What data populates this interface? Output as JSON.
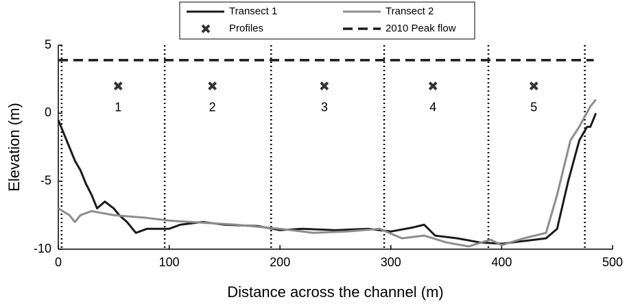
{
  "chart_data": {
    "type": "line",
    "x_label": "Distance across the channel (m)",
    "y_label": "Elevation (m)",
    "xlim": [
      0,
      500
    ],
    "ylim": [
      -10,
      5
    ],
    "xticks": [
      0,
      100,
      200,
      300,
      400,
      500
    ],
    "yticks": [
      -10,
      -5,
      0,
      5
    ],
    "vlines": [
      3,
      96,
      192,
      294,
      388,
      475
    ],
    "series": [
      {
        "name": "Transect 1",
        "color": "#1a1a1a",
        "style": "solid",
        "x": [
          0,
          5,
          10,
          15,
          20,
          25,
          30,
          35,
          42,
          50,
          55,
          62,
          70,
          80,
          100,
          110,
          130,
          150,
          180,
          200,
          220,
          250,
          280,
          300,
          320,
          330,
          340,
          360,
          380,
          400,
          420,
          440,
          450,
          460,
          470,
          477,
          480,
          485
        ],
        "values": [
          -0.5,
          -1.5,
          -2.5,
          -3.5,
          -4.2,
          -5.2,
          -6.0,
          -7.0,
          -6.5,
          -7.0,
          -7.5,
          -8.0,
          -8.8,
          -8.5,
          -8.5,
          -8.2,
          -8.0,
          -8.2,
          -8.3,
          -8.6,
          -8.5,
          -8.6,
          -8.5,
          -8.7,
          -8.4,
          -8.2,
          -9.0,
          -9.2,
          -9.5,
          -9.6,
          -9.4,
          -9.2,
          -8.5,
          -5.0,
          -2.0,
          -1.0,
          -1.0,
          0.0
        ]
      },
      {
        "name": "Transect 2",
        "color": "#8c8c8c",
        "style": "solid",
        "x": [
          0,
          10,
          15,
          20,
          30,
          50,
          80,
          100,
          120,
          160,
          200,
          230,
          260,
          290,
          310,
          330,
          350,
          370,
          390,
          400,
          420,
          440,
          450,
          462,
          470,
          480,
          485
        ],
        "values": [
          -7.0,
          -7.5,
          -8.0,
          -7.5,
          -7.2,
          -7.5,
          -7.7,
          -7.9,
          -8.0,
          -8.2,
          -8.5,
          -8.8,
          -8.7,
          -8.5,
          -9.2,
          -9.0,
          -9.5,
          -9.8,
          -9.3,
          -9.7,
          -9.2,
          -8.8,
          -6.0,
          -2.0,
          -1.0,
          0.5,
          1.0
        ]
      },
      {
        "name": "Profiles",
        "color": "#333333",
        "style": "marker",
        "x": [
          54,
          139,
          240,
          338,
          429
        ],
        "values": [
          2,
          2,
          2,
          2,
          2
        ],
        "labels": [
          "1",
          "2",
          "3",
          "4",
          "5"
        ]
      },
      {
        "name": "2010 Peak flow",
        "color": "#1a1a1a",
        "style": "dashed",
        "x": [
          0,
          483
        ],
        "values": [
          3.9,
          3.9
        ]
      }
    ]
  }
}
